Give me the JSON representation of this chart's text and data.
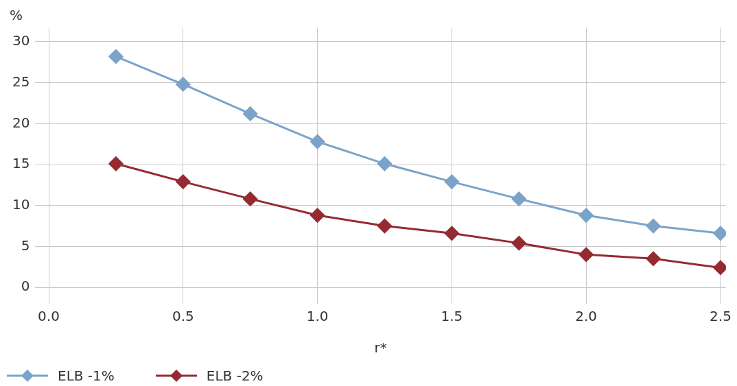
{
  "chart_data": {
    "type": "line",
    "xlabel": "r*",
    "ylabel": "%",
    "x": [
      0.25,
      0.5,
      0.75,
      1.0,
      1.25,
      1.5,
      1.75,
      2.0,
      2.25,
      2.5
    ],
    "series": [
      {
        "name": "ELB -1%",
        "color": "#7ba3c9",
        "values": [
          28.2,
          24.8,
          21.2,
          17.8,
          15.1,
          12.9,
          10.8,
          8.8,
          7.5,
          6.6
        ]
      },
      {
        "name": "ELB -2%",
        "color": "#962a31",
        "values": [
          15.1,
          12.9,
          10.8,
          8.8,
          7.5,
          6.6,
          5.4,
          4.0,
          3.5,
          2.4
        ]
      }
    ],
    "xlim": [
      -0.05,
      2.52
    ],
    "xticks": [
      {
        "value": 0,
        "label": "0.0"
      },
      {
        "value": 0.5,
        "label": "0.5"
      },
      {
        "value": 1,
        "label": "1.0"
      },
      {
        "value": 1.5,
        "label": "1.5"
      },
      {
        "value": 2,
        "label": "2.0"
      },
      {
        "value": 2.5,
        "label": "2.5"
      }
    ],
    "ylim": [
      -2,
      31.75
    ],
    "yticks": [
      0,
      5,
      10,
      15,
      20,
      25,
      30
    ],
    "grid": true,
    "legend": "bottom left",
    "marker": "diamond",
    "line_style": "solid"
  }
}
